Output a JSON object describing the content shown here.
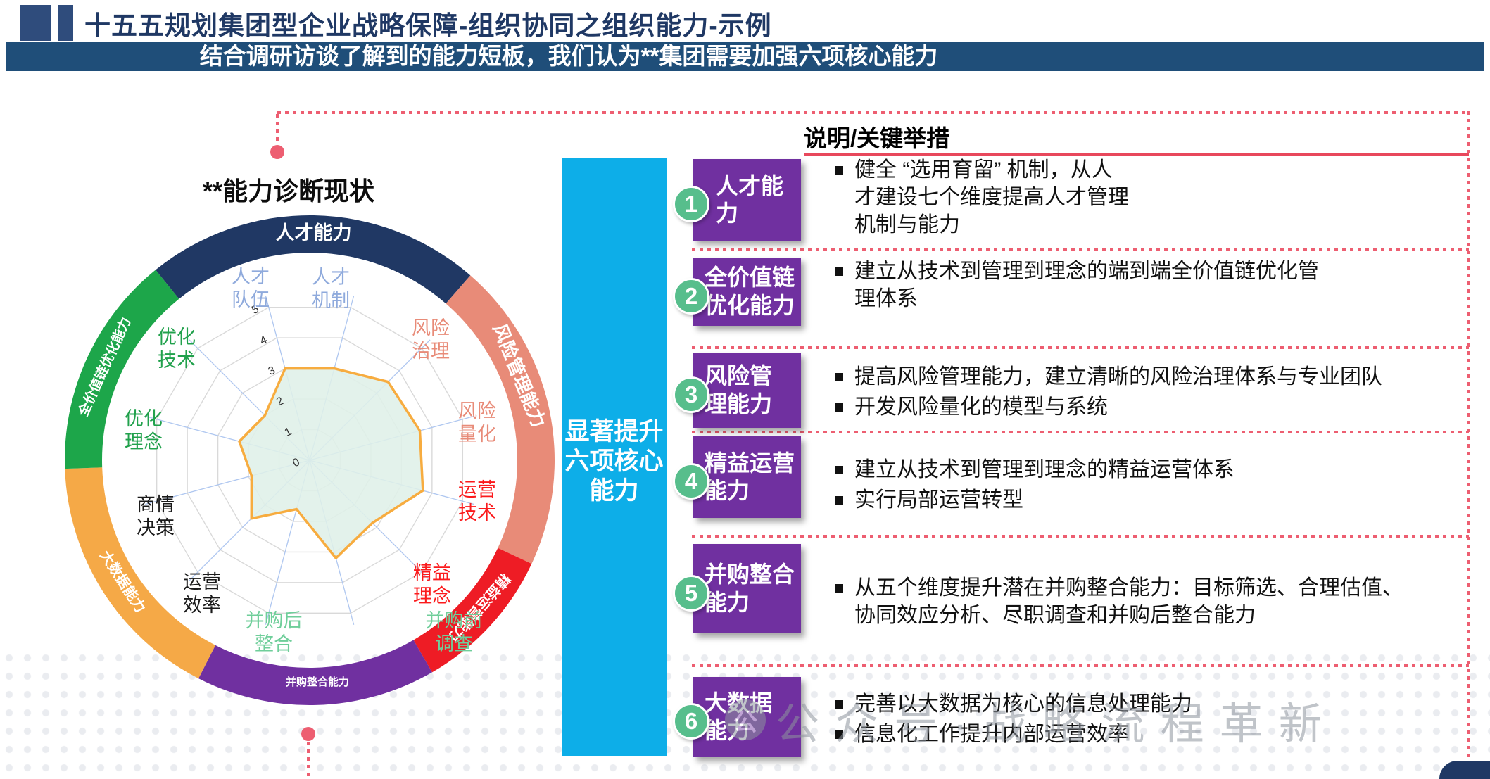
{
  "header": {
    "title": "十五五规划集团型企业战略保障-组织协同之组织能力-示例",
    "banner": "结合调研访谈了解到的能力短板，我们认为**集团需要加强六项核心能力"
  },
  "left_panel": {
    "chart_title": "**能力诊断现状"
  },
  "middle_bar": {
    "text": "显著提升\n六项核心\n能力"
  },
  "right_panel": {
    "header": "说明/关键举措",
    "rows": [
      {
        "num": "1",
        "box": "人才能力",
        "bullets": [
          "健全 “选用育留” 机制，从人\n才建设七个维度提高人才管理\n机制与能力"
        ]
      },
      {
        "num": "2",
        "box": "全价值链\n优化能力",
        "bullets": [
          "建立从技术到管理到理念的端到端全价值链优化管\n理体系"
        ]
      },
      {
        "num": "3",
        "box": "风险管\n理能力",
        "bullets": [
          "提高风险管理能力，建立清晰的风险治理体系与专业团队",
          "开发风险量化的模型与系统"
        ]
      },
      {
        "num": "4",
        "box": "精益运营\n能力",
        "bullets": [
          "建立从技术到管理到理念的精益运营体系",
          "实行局部运营转型"
        ]
      },
      {
        "num": "5",
        "box": "并购整合\n能力",
        "bullets": [
          "从五个维度提升潜在并购整合能力：目标筛选、合理估值、\n协同效应分析、尽职调查和并购后整合能力"
        ]
      },
      {
        "num": "6",
        "box": "大数据\n能力",
        "bullets": [
          "完善以大数据为核心的信息处理能力",
          "信息化工作提升内部运营效率"
        ]
      }
    ]
  },
  "watermark": {
    "text": "公众号·战略流程革新",
    "icon": "公"
  },
  "chart_data": {
    "type": "radar",
    "title": "**能力诊断现状",
    "scale": {
      "min": 0,
      "max": 5,
      "ticks": [
        0,
        1,
        2,
        3,
        4,
        5
      ]
    },
    "axes": [
      {
        "label": [
          "人才",
          "队伍"
        ],
        "color": "#8faadc"
      },
      {
        "label": [
          "人才",
          "机制"
        ],
        "color": "#8faadc"
      },
      {
        "label": [
          "风险",
          "治理"
        ],
        "color": "#e88b78"
      },
      {
        "label": [
          "风险",
          "量化"
        ],
        "color": "#e88b78"
      },
      {
        "label": [
          "运营",
          "技术"
        ],
        "color": "#fb1a1c"
      },
      {
        "label": [
          "精益",
          "理念"
        ],
        "color": "#fb1a1c"
      },
      {
        "label": [
          "并购前",
          "调查"
        ],
        "color": "#6fce9a"
      },
      {
        "label": [
          "并购后",
          "整合"
        ],
        "color": "#6fce9a"
      },
      {
        "label": [
          "运营",
          "效率"
        ],
        "color": "#1a1a1a"
      },
      {
        "label": [
          "商情",
          "决策"
        ],
        "color": "#1a1a1a"
      },
      {
        "label": [
          "优化",
          "理念"
        ],
        "color": "#21a14c"
      },
      {
        "label": [
          "优化",
          "技术"
        ],
        "color": "#21a14c"
      }
    ],
    "values": [
      3.0,
      3.0,
      3.5,
      3.6,
      3.7,
      2.8,
      3.2,
      1.6,
      2.6,
      1.9,
      2.3,
      2.0
    ],
    "series_style": {
      "stroke": "#f7ac3f",
      "fill": "#dff0e8"
    },
    "grid": {
      "spoke_color": "#afc7f0",
      "ring_color": "#d9d9d9"
    },
    "ring_segments": [
      {
        "label": "人才能力",
        "color": "#203864",
        "start": -39,
        "end": 41
      },
      {
        "label": "风险管理能力",
        "color": "#e88b78",
        "start": 41,
        "end": 115
      },
      {
        "label": "精益运营能力",
        "color": "#ee1c25",
        "start": 115,
        "end": 150
      },
      {
        "label": "并购整合能力",
        "color": "#7030a0",
        "start": 150,
        "end": 207
      },
      {
        "label": "大数据能力",
        "color": "#f5a947",
        "start": 207,
        "end": 268
      },
      {
        "label": "全价值链优化能力",
        "color": "#1da64a",
        "start": 268,
        "end": 321
      }
    ]
  },
  "colors": {
    "title": "#1f3864",
    "banner_bg": "#1f4e79",
    "mid_bar": "#0daee8",
    "capability_box": "#7030a0",
    "number_circle": "#57be8c",
    "dashed_guide": "#ed5e71",
    "header_underline": "#e8485c"
  }
}
